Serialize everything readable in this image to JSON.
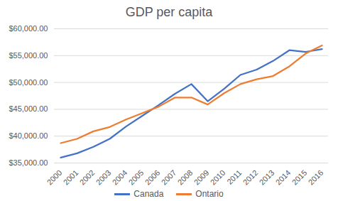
{
  "chart_data": {
    "type": "line",
    "title": "GDP per capita",
    "categories": [
      "2000",
      "2001",
      "2002",
      "2003",
      "2004",
      "2005",
      "2006",
      "2007",
      "2008",
      "2009",
      "2010",
      "2011",
      "2012",
      "2013",
      "2014",
      "2015",
      "2016"
    ],
    "series": [
      {
        "name": "Canada",
        "color": "#4472c4",
        "values": [
          36000,
          36800,
          38000,
          39500,
          41800,
          43800,
          45800,
          47900,
          49700,
          46500,
          48800,
          51400,
          52400,
          54000,
          56000,
          55700,
          56200
        ]
      },
      {
        "name": "Ontario",
        "color": "#ed7d31",
        "values": [
          38700,
          39500,
          40900,
          41700,
          43100,
          44300,
          45500,
          47200,
          47200,
          45900,
          48000,
          49700,
          50600,
          51200,
          53000,
          55400,
          56900
        ]
      }
    ],
    "ylim": [
      35000,
      60000
    ],
    "yticks": [
      {
        "value": 35000,
        "label": "$35,000.00"
      },
      {
        "value": 40000,
        "label": "$40,000.00"
      },
      {
        "value": 45000,
        "label": "$45,000.00"
      },
      {
        "value": 50000,
        "label": "$50,000.00"
      },
      {
        "value": 55000,
        "label": "$55,000.00"
      },
      {
        "value": 60000,
        "label": "$60,000.00"
      }
    ],
    "grid": true,
    "legend": "bottom"
  }
}
